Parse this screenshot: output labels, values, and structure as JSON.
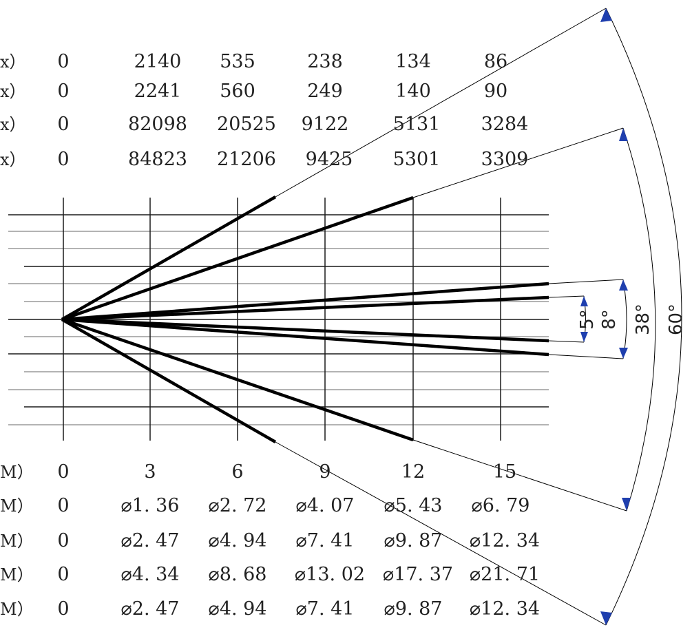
{
  "top_table": {
    "units": [
      "x）",
      "x）",
      "x）",
      "x）"
    ],
    "rows": [
      [
        "0",
        "2140",
        "535",
        "238",
        "134",
        "86"
      ],
      [
        "0",
        "2241",
        "560",
        "249",
        "140",
        "90"
      ],
      [
        "0",
        "82098",
        "20525",
        "9122",
        "5131",
        "3284"
      ],
      [
        "0",
        "84823",
        "21206",
        "9425",
        "5301",
        "3309"
      ]
    ]
  },
  "bottom_table": {
    "units": [
      "M）",
      "M）",
      "M）",
      "M）",
      "M）"
    ],
    "rows": [
      [
        "0",
        "3",
        "6",
        "9",
        "12",
        "15"
      ],
      [
        "0",
        "⌀1. 36",
        "⌀2. 72",
        "⌀4. 07",
        "⌀5. 43",
        "⌀6. 79"
      ],
      [
        "0",
        "⌀2. 47",
        "⌀4. 94",
        "⌀7. 41",
        "⌀9. 87",
        "⌀12. 34"
      ],
      [
        "0",
        "⌀4. 34",
        "⌀8. 68",
        "⌀13. 02",
        "⌀17. 37",
        "⌀21. 71"
      ],
      [
        "0",
        "⌀2. 47",
        "⌀4. 94",
        "⌀7. 41",
        "⌀9. 87",
        "⌀12. 34"
      ]
    ]
  },
  "beam_angles": {
    "a5": "5°",
    "a8": "8°",
    "a38": "38°",
    "a60": "60°"
  },
  "colors": {
    "line": "#000000",
    "grid_dark": "#1a1a1a",
    "grid_light": "#9a9a9a",
    "arrow": "#1f3fae"
  }
}
